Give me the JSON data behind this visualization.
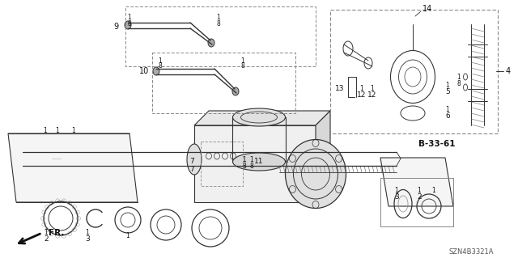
{
  "bg_color": "#ffffff",
  "fig_width": 6.4,
  "fig_height": 3.19,
  "dpi": 100,
  "diagram_code": "SZN4B3321A",
  "ref_code": "B-33-61",
  "fr_label": "FR."
}
